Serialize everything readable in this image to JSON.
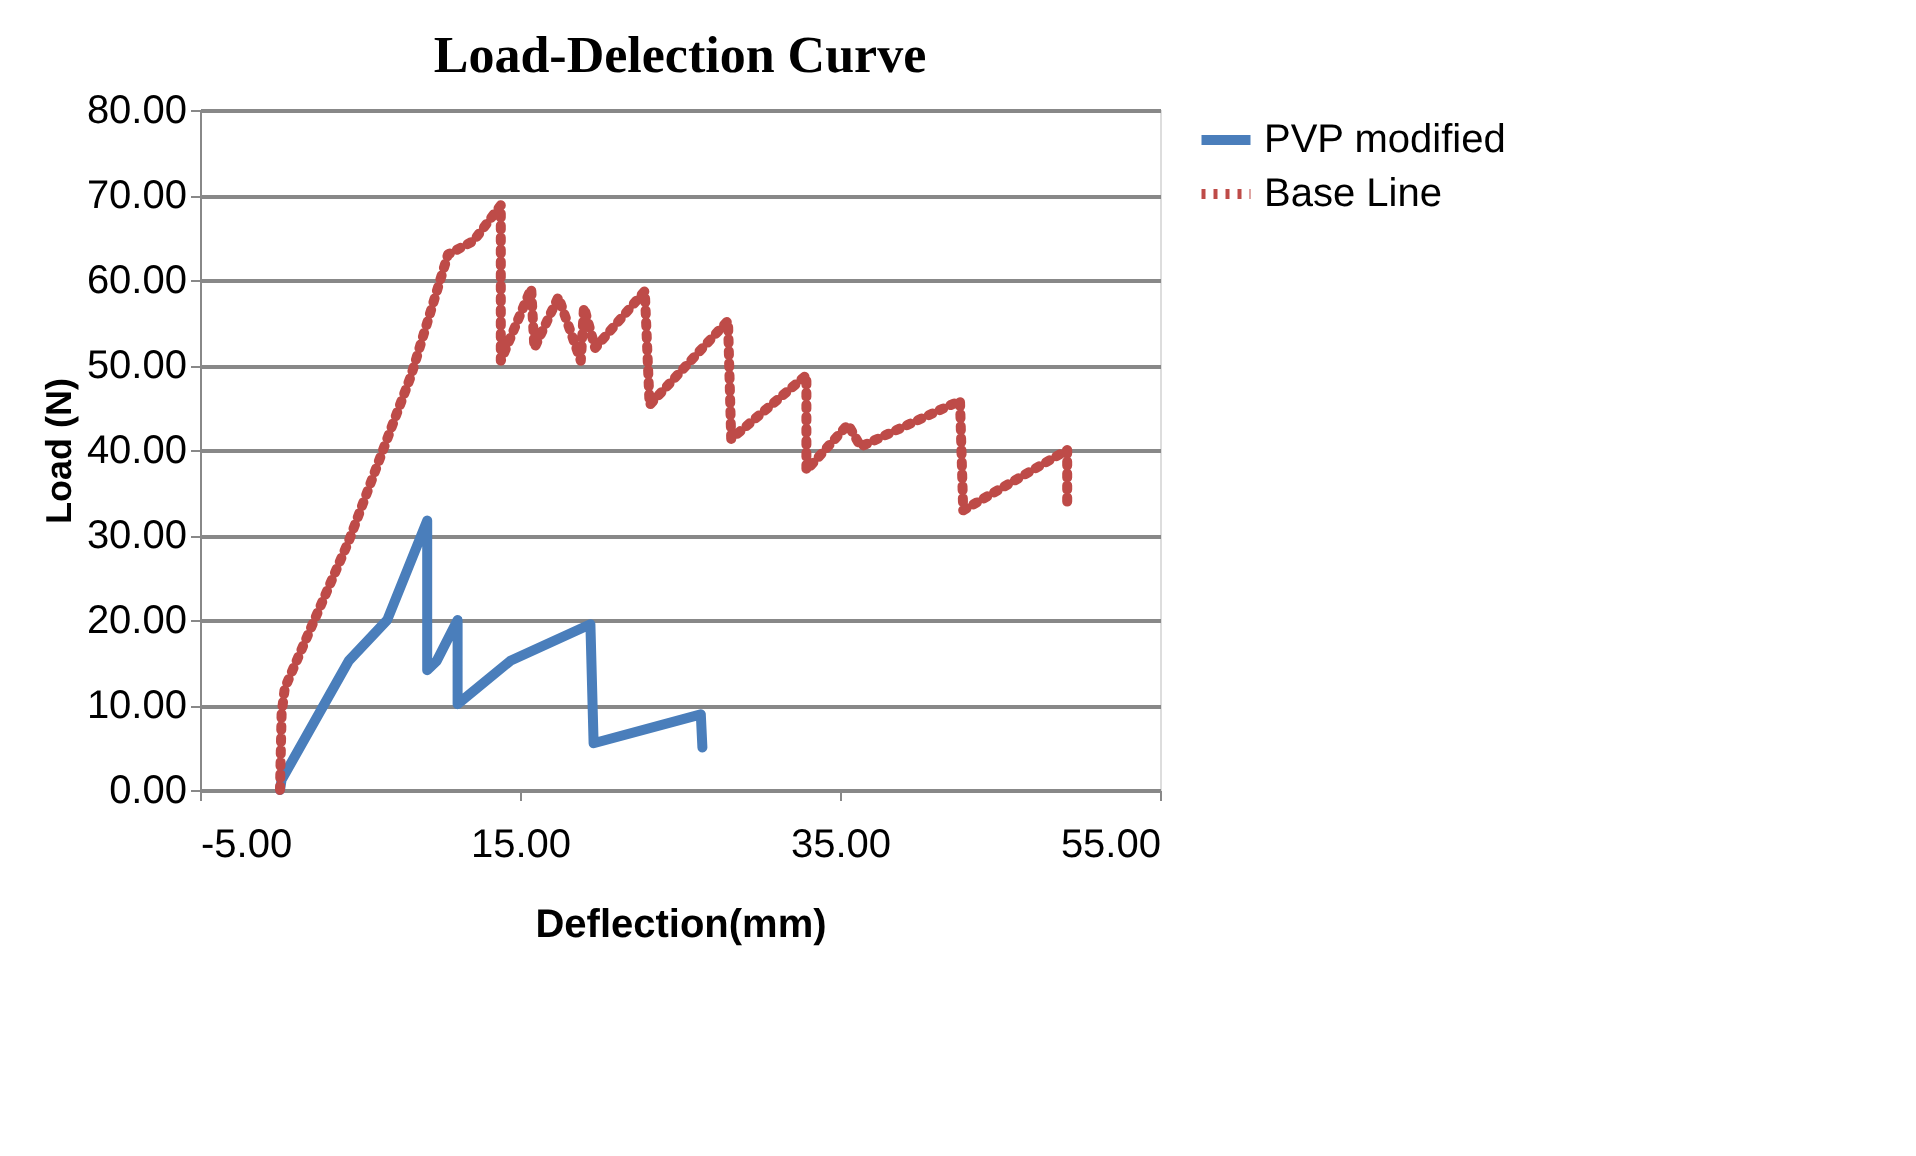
{
  "chart_data": {
    "type": "line",
    "title": "Load-Delection Curve",
    "xlabel": "Deflection(mm)",
    "ylabel": "Load (N)",
    "xlim": [
      -5,
      55
    ],
    "xticks": [
      {
        "value": -5,
        "label": "-5.00"
      },
      {
        "value": 15,
        "label": "15.00"
      },
      {
        "value": 35,
        "label": "35.00"
      },
      {
        "value": 55,
        "label": "55.00"
      }
    ],
    "ylim": [
      0,
      80
    ],
    "yticks": [
      {
        "value": 0,
        "label": "0.00"
      },
      {
        "value": 10,
        "label": "10.00"
      },
      {
        "value": 20,
        "label": "20.00"
      },
      {
        "value": 30,
        "label": "30.00"
      },
      {
        "value": 40,
        "label": "40.00"
      },
      {
        "value": 50,
        "label": "50.00"
      },
      {
        "value": 60,
        "label": "60.00"
      },
      {
        "value": 70,
        "label": "70.00"
      },
      {
        "value": 80,
        "label": "80.00"
      }
    ],
    "grid": "y",
    "legend": "right",
    "series": [
      {
        "name": "PVP modified",
        "color": "#4a7ebb",
        "line_style": "solid",
        "x": [
          0,
          0.1,
          4.3,
          6.7,
          9.2,
          9.2,
          9.8,
          11.1,
          11.1,
          14.4,
          19.4,
          19.6,
          26.3,
          26.4
        ],
        "values": [
          0,
          1.2,
          15.2,
          20,
          31.7,
          14.1,
          15.2,
          20,
          10.1,
          15.2,
          19.5,
          5.5,
          8.9,
          5
        ]
      },
      {
        "name": "Base Line",
        "color": "#be4b48",
        "line_style": "dotted",
        "x": [
          0,
          0.1,
          0.3,
          4.3,
          8.2,
          10.5,
          12.1,
          13.8,
          13.8,
          15.7,
          15.9,
          17.4,
          18.8,
          19.0,
          19.7,
          22.8,
          23.1,
          27.4,
          28.0,
          28.2,
          32.9,
          32.9,
          35.5,
          36.3,
          42.5,
          42.7,
          49.2,
          49.2
        ],
        "values": [
          0,
          9,
          12,
          29.3,
          48.8,
          63,
          64.6,
          68.8,
          50.5,
          59,
          52,
          58,
          50.5,
          56.8,
          52,
          58.7,
          45.3,
          54,
          55.2,
          41.3,
          48.8,
          37.6,
          43,
          40.4,
          45.8,
          32.9,
          40,
          33.6
        ]
      }
    ]
  }
}
